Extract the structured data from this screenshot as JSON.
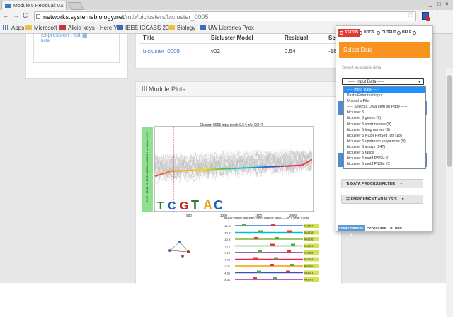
{
  "browser": {
    "tab_title": "Module 5 Residual: 0.",
    "tab_close": "×",
    "url_domain": "networks.systemsbiology.net",
    "url_path": "/mtb/biclusters/bicluster_0005",
    "back": "←",
    "forward": "→",
    "reload": "C",
    "bookmarks": [
      {
        "label": "Apps",
        "icon": "apps-grid-icon"
      },
      {
        "label": "Microsoft",
        "icon": "folder-icon"
      },
      {
        "label": "Alicia keys - Here Y",
        "icon": "video-icon"
      },
      {
        "label": "IEEE ICCABS 2013",
        "icon": "page-icon"
      },
      {
        "label": "Biology",
        "icon": "folder-icon"
      },
      {
        "label": "UW Libraries Prox",
        "icon": "page-icon"
      }
    ]
  },
  "sidebar": {
    "expression_plot_link": "Expression Plot",
    "beta": "beta"
  },
  "summary_table": {
    "headers": [
      "Title",
      "Bicluster Model",
      "Residual",
      "Sco"
    ],
    "row": [
      "bicluster_0005",
      "v02",
      "0.54",
      "-18"
    ]
  },
  "module_plots": {
    "title": "Module Plots",
    "chart_title": "Cluster: 0005 mtu; resid: 0.54; r/c: 9/247",
    "x_ticks": [
      "500",
      "1000",
      "1500",
      "2000"
    ],
    "side_label": "13.0% 25 14 25 13 Re=0001 mtu/0005 / conditions 0.5 0",
    "motif_header": "log10(P value) upstream interm   log10(P clust)=-7.58; 9 seqs; 6 uniq",
    "motif_rows": [
      {
        "score": "-10.97",
        "tag": "Rv1234"
      },
      {
        "score": "-10.97",
        "tag": "Rv1235"
      },
      {
        "score": "-10.97",
        "tag": "Rv1236"
      },
      {
        "score": "-7.76",
        "tag": "Rv1237"
      },
      {
        "score": "-7.76",
        "tag": "Rv1238"
      },
      {
        "score": "-7.76",
        "tag": "Rv1239"
      },
      {
        "score": "-7.21",
        "tag": "Rv1240"
      },
      {
        "score": "-4.31",
        "tag": "Rv1241"
      },
      {
        "score": "-4.31",
        "tag": "Rv1242"
      }
    ]
  },
  "popup": {
    "tabs": [
      "STATUS",
      "DOCS",
      "OUTPUT",
      "HELP",
      ""
    ],
    "header": "Select Data",
    "caption": "Select available data",
    "selected": "----- Input Data -----",
    "options": [
      "----- Input Data -----",
      "Paste/Enter text input",
      "Upload a File",
      "----- Select a Data Item on Page -----",
      "bicluster 5",
      "bicluster 5 genes (9)",
      "bicluster 5 short names (9)",
      "bicluster 5 long names (9)",
      "bicluster 5 NCBI RefSeq IDs (18)",
      "bicluster 5 upstream sequences (9)",
      "bicluster 5 arrays (247)",
      "bicluster 5 ratios",
      "bicluster 5 motif PSSM #1",
      "bicluster 5 motif PSSM #2"
    ],
    "process_label": "DATA PROCESS/FILTER",
    "enrichment_label": "ENRICHMENT ANALYSIS",
    "start_label": "START GREESE",
    "cyto_label": "CYTOSCAPE",
    "b_label": "B",
    "msv_label": "MSV"
  },
  "chart_data": {
    "type": "line",
    "title": "Cluster: 0005 mtu; resid: 0.54; r/c: 9/247",
    "x_ticks": [
      500,
      1000,
      1500,
      2000
    ],
    "xlim": [
      0,
      2300
    ],
    "series_note": "many gray condition traces with rainbow-colored mean line"
  }
}
